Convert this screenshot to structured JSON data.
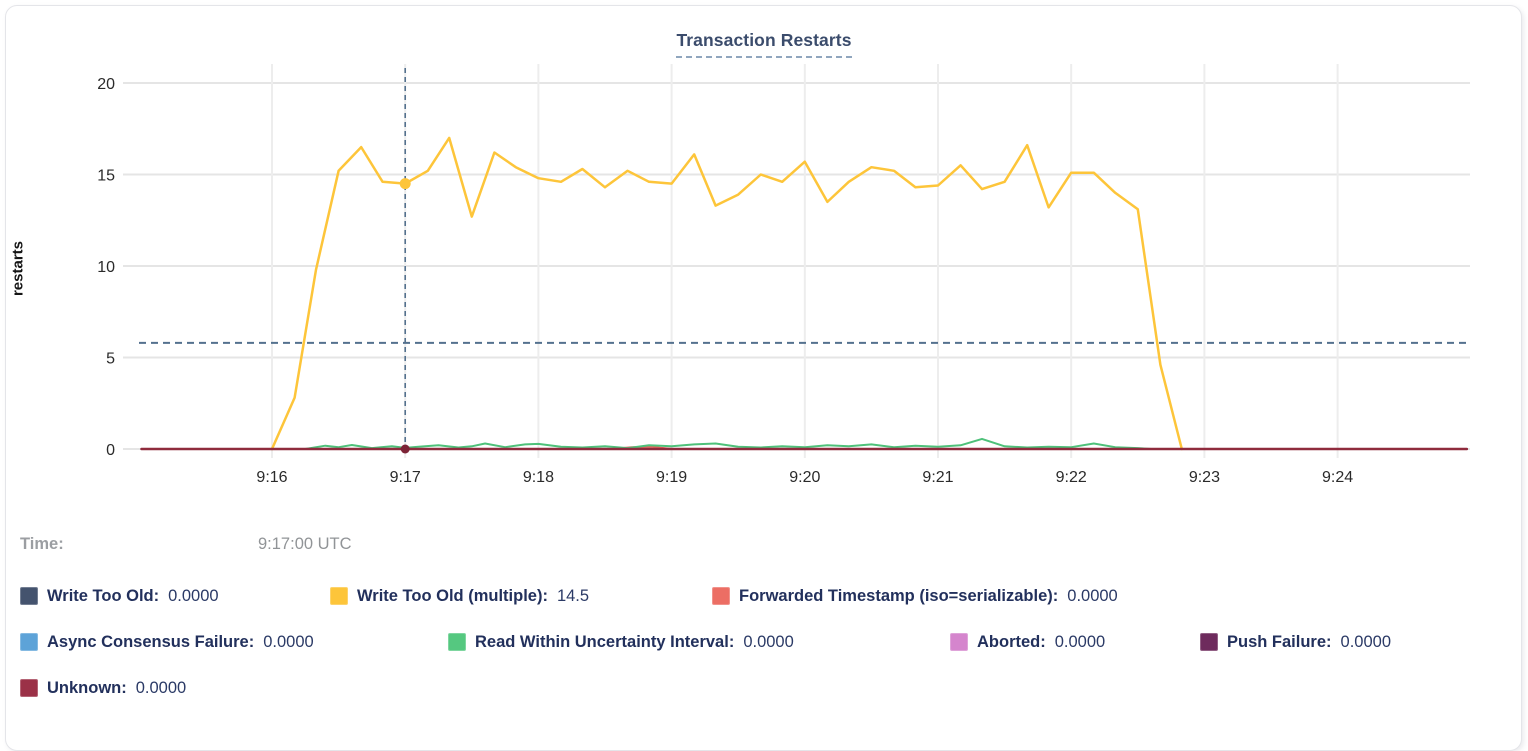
{
  "title": "Transaction Restarts",
  "ylabel": "restarts",
  "hover": {
    "time_prefix": "Time:",
    "time_value": "9:17:00 UTC"
  },
  "legend": {
    "rows": [
      [
        {
          "label": "Write Too Old:",
          "value": "0.0000",
          "color": "#44536e"
        },
        {
          "label": "Write Too Old (multiple):",
          "value": "14.5",
          "color": "#fdc53a"
        },
        {
          "label": "Forwarded Timestamp (iso=serializable):",
          "value": "0.0000",
          "color": "#ec6e64"
        }
      ],
      [
        {
          "label": "Async Consensus Failure:",
          "value": "0.0000",
          "color": "#5da3d8"
        },
        {
          "label": "Read Within Uncertainty Interval:",
          "value": "0.0000",
          "color": "#55c880"
        },
        {
          "label": "Aborted:",
          "value": "0.0000",
          "color": "#d585cd"
        },
        {
          "label": "Push Failure:",
          "value": "0.0000",
          "color": "#6e2b5d"
        }
      ],
      [
        {
          "label": "Unknown:",
          "value": "0.0000",
          "color": "#9b3147"
        }
      ]
    ]
  },
  "chart_data": {
    "type": "line",
    "title": "Transaction Restarts",
    "xlabel": "",
    "ylabel": "restarts",
    "x_unit_minutes_after_9am": true,
    "xlim": [
      15.0,
      25.0
    ],
    "ylim": [
      0,
      20
    ],
    "grid": true,
    "yticks": [
      0,
      5,
      10,
      15,
      20
    ],
    "xticks": [
      {
        "t": 16,
        "label": "9:16"
      },
      {
        "t": 17,
        "label": "9:17"
      },
      {
        "t": 18,
        "label": "9:18"
      },
      {
        "t": 19,
        "label": "9:19"
      },
      {
        "t": 20,
        "label": "9:20"
      },
      {
        "t": 21,
        "label": "9:21"
      },
      {
        "t": 22,
        "label": "9:22"
      },
      {
        "t": 23,
        "label": "9:23"
      },
      {
        "t": 24,
        "label": "9:24"
      }
    ],
    "average_line_value": 5.8,
    "crosshair_t": 17.0,
    "hover_points": [
      {
        "series": "Write Too Old (multiple)",
        "t": 17.0,
        "value": 14.5,
        "color": "#fdc53a",
        "r": 5.5
      },
      {
        "series": "Unknown",
        "t": 17.0,
        "value": 0,
        "color": "#7c2336",
        "r": 4.5
      }
    ],
    "series": [
      {
        "name": "Write Too Old",
        "color": "#44536e",
        "width": 2,
        "points": [
          [
            15.02,
            0
          ],
          [
            24.97,
            0
          ]
        ]
      },
      {
        "name": "Async Consensus Failure",
        "color": "#5da3d8",
        "width": 2,
        "points": [
          [
            15.02,
            0
          ],
          [
            24.97,
            0
          ]
        ]
      },
      {
        "name": "Aborted",
        "color": "#d585cd",
        "width": 2,
        "points": [
          [
            15.02,
            0
          ],
          [
            24.97,
            0
          ]
        ]
      },
      {
        "name": "Push Failure",
        "color": "#6e2b5d",
        "width": 2,
        "points": [
          [
            15.02,
            0
          ],
          [
            24.97,
            0
          ]
        ]
      },
      {
        "name": "Forwarded Timestamp (iso=serializable)",
        "color": "#e8665c",
        "width": 2,
        "points": [
          [
            15.02,
            0
          ],
          [
            18.55,
            0
          ],
          [
            18.7,
            0.1
          ],
          [
            18.85,
            0.12
          ],
          [
            19.0,
            0
          ],
          [
            24.97,
            0
          ]
        ]
      },
      {
        "name": "Read Within Uncertainty Interval",
        "color": "#4ec17a",
        "width": 2,
        "points": [
          [
            16.25,
            0
          ],
          [
            16.4,
            0.18
          ],
          [
            16.5,
            0.1
          ],
          [
            16.6,
            0.22
          ],
          [
            16.75,
            0.05
          ],
          [
            16.9,
            0.15
          ],
          [
            17.0,
            0.06
          ],
          [
            17.1,
            0.12
          ],
          [
            17.25,
            0.2
          ],
          [
            17.4,
            0.08
          ],
          [
            17.5,
            0.15
          ],
          [
            17.6,
            0.3
          ],
          [
            17.75,
            0.1
          ],
          [
            17.9,
            0.25
          ],
          [
            18.0,
            0.28
          ],
          [
            18.17,
            0.12
          ],
          [
            18.33,
            0.08
          ],
          [
            18.5,
            0.15
          ],
          [
            18.67,
            0.05
          ],
          [
            18.83,
            0.2
          ],
          [
            19.0,
            0.15
          ],
          [
            19.17,
            0.25
          ],
          [
            19.33,
            0.3
          ],
          [
            19.5,
            0.12
          ],
          [
            19.67,
            0.08
          ],
          [
            19.83,
            0.15
          ],
          [
            20.0,
            0.1
          ],
          [
            20.17,
            0.2
          ],
          [
            20.33,
            0.15
          ],
          [
            20.5,
            0.25
          ],
          [
            20.67,
            0.1
          ],
          [
            20.83,
            0.18
          ],
          [
            21.0,
            0.12
          ],
          [
            21.17,
            0.2
          ],
          [
            21.33,
            0.55
          ],
          [
            21.5,
            0.15
          ],
          [
            21.67,
            0.08
          ],
          [
            21.83,
            0.12
          ],
          [
            22.0,
            0.1
          ],
          [
            22.17,
            0.3
          ],
          [
            22.33,
            0.1
          ],
          [
            22.5,
            0.05
          ],
          [
            22.6,
            0
          ]
        ]
      },
      {
        "name": "Write Too Old (multiple)",
        "color": "#fdc53a",
        "width": 2.5,
        "points": [
          [
            16.0,
            0
          ],
          [
            16.17,
            2.8
          ],
          [
            16.33,
            9.8
          ],
          [
            16.5,
            15.2
          ],
          [
            16.67,
            16.5
          ],
          [
            16.83,
            14.6
          ],
          [
            17.0,
            14.5
          ],
          [
            17.17,
            15.2
          ],
          [
            17.33,
            17.0
          ],
          [
            17.5,
            12.7
          ],
          [
            17.67,
            16.2
          ],
          [
            17.83,
            15.4
          ],
          [
            18.0,
            14.8
          ],
          [
            18.17,
            14.6
          ],
          [
            18.33,
            15.3
          ],
          [
            18.5,
            14.3
          ],
          [
            18.67,
            15.2
          ],
          [
            18.83,
            14.6
          ],
          [
            19.0,
            14.5
          ],
          [
            19.17,
            16.1
          ],
          [
            19.33,
            13.3
          ],
          [
            19.5,
            13.9
          ],
          [
            19.67,
            15.0
          ],
          [
            19.83,
            14.6
          ],
          [
            20.0,
            15.7
          ],
          [
            20.17,
            13.5
          ],
          [
            20.33,
            14.6
          ],
          [
            20.5,
            15.4
          ],
          [
            20.67,
            15.2
          ],
          [
            20.83,
            14.3
          ],
          [
            21.0,
            14.4
          ],
          [
            21.17,
            15.5
          ],
          [
            21.33,
            14.2
          ],
          [
            21.5,
            14.6
          ],
          [
            21.67,
            16.6
          ],
          [
            21.83,
            13.2
          ],
          [
            22.0,
            15.1
          ],
          [
            22.17,
            15.1
          ],
          [
            22.33,
            14.0
          ],
          [
            22.5,
            13.1
          ],
          [
            22.67,
            4.6
          ],
          [
            22.83,
            0
          ]
        ]
      },
      {
        "name": "Unknown",
        "color": "#8f2b3d",
        "width": 2.5,
        "points": [
          [
            15.02,
            0
          ],
          [
            24.97,
            0
          ]
        ]
      }
    ]
  }
}
